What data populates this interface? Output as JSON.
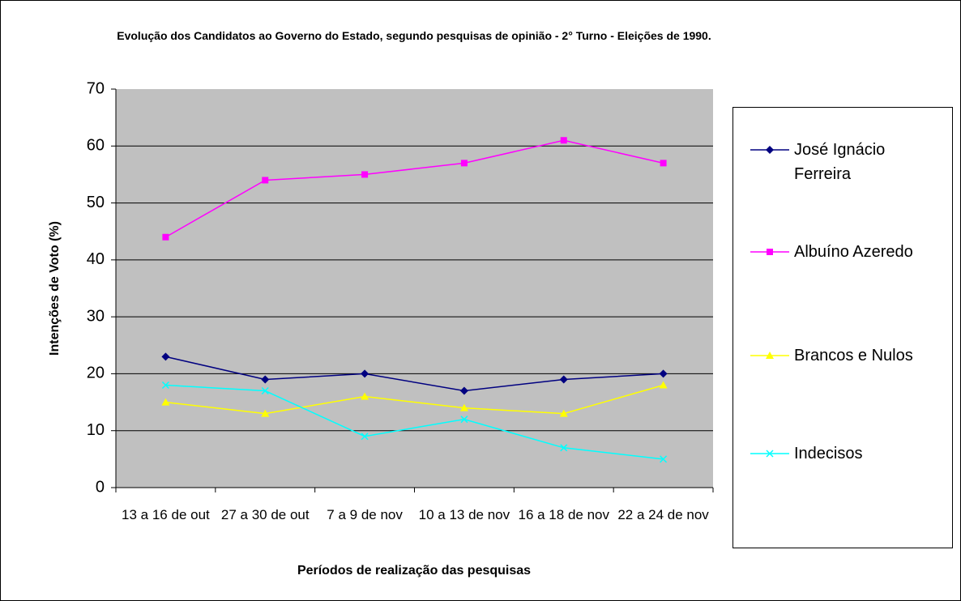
{
  "chart_data": {
    "type": "line",
    "title": "Evolução dos Candidatos ao Governo do Estado, segundo pesquisas de opinião - 2° Turno - Eleições de 1990.",
    "xlabel": "Períodos de realização das pesquisas",
    "ylabel": "Intenções de Voto (%)",
    "categories": [
      "13 a 16 de out",
      "27 a 30 de out",
      "7 a 9 de nov",
      "10 a 13 de nov",
      "16 a 18 de nov",
      "22 a 24 de nov"
    ],
    "series": [
      {
        "name": "José Ignácio Ferreira",
        "color": "#000080",
        "marker": "diamond",
        "values": [
          23,
          19,
          20,
          17,
          19,
          20
        ]
      },
      {
        "name": "Albuíno Azeredo",
        "color": "#ff00ff",
        "marker": "square",
        "values": [
          44,
          54,
          55,
          57,
          61,
          57
        ]
      },
      {
        "name": "Brancos e Nulos",
        "color": "#ffff00",
        "marker": "triangle",
        "values": [
          15,
          13,
          16,
          14,
          13,
          18
        ]
      },
      {
        "name": "Indecisos",
        "color": "#00ffff",
        "marker": "x",
        "values": [
          18,
          17,
          9,
          12,
          7,
          5
        ]
      }
    ],
    "ylim": [
      0,
      70
    ],
    "yticks": [
      0,
      10,
      20,
      30,
      40,
      50,
      60,
      70
    ],
    "grid": true,
    "legend": "right"
  }
}
